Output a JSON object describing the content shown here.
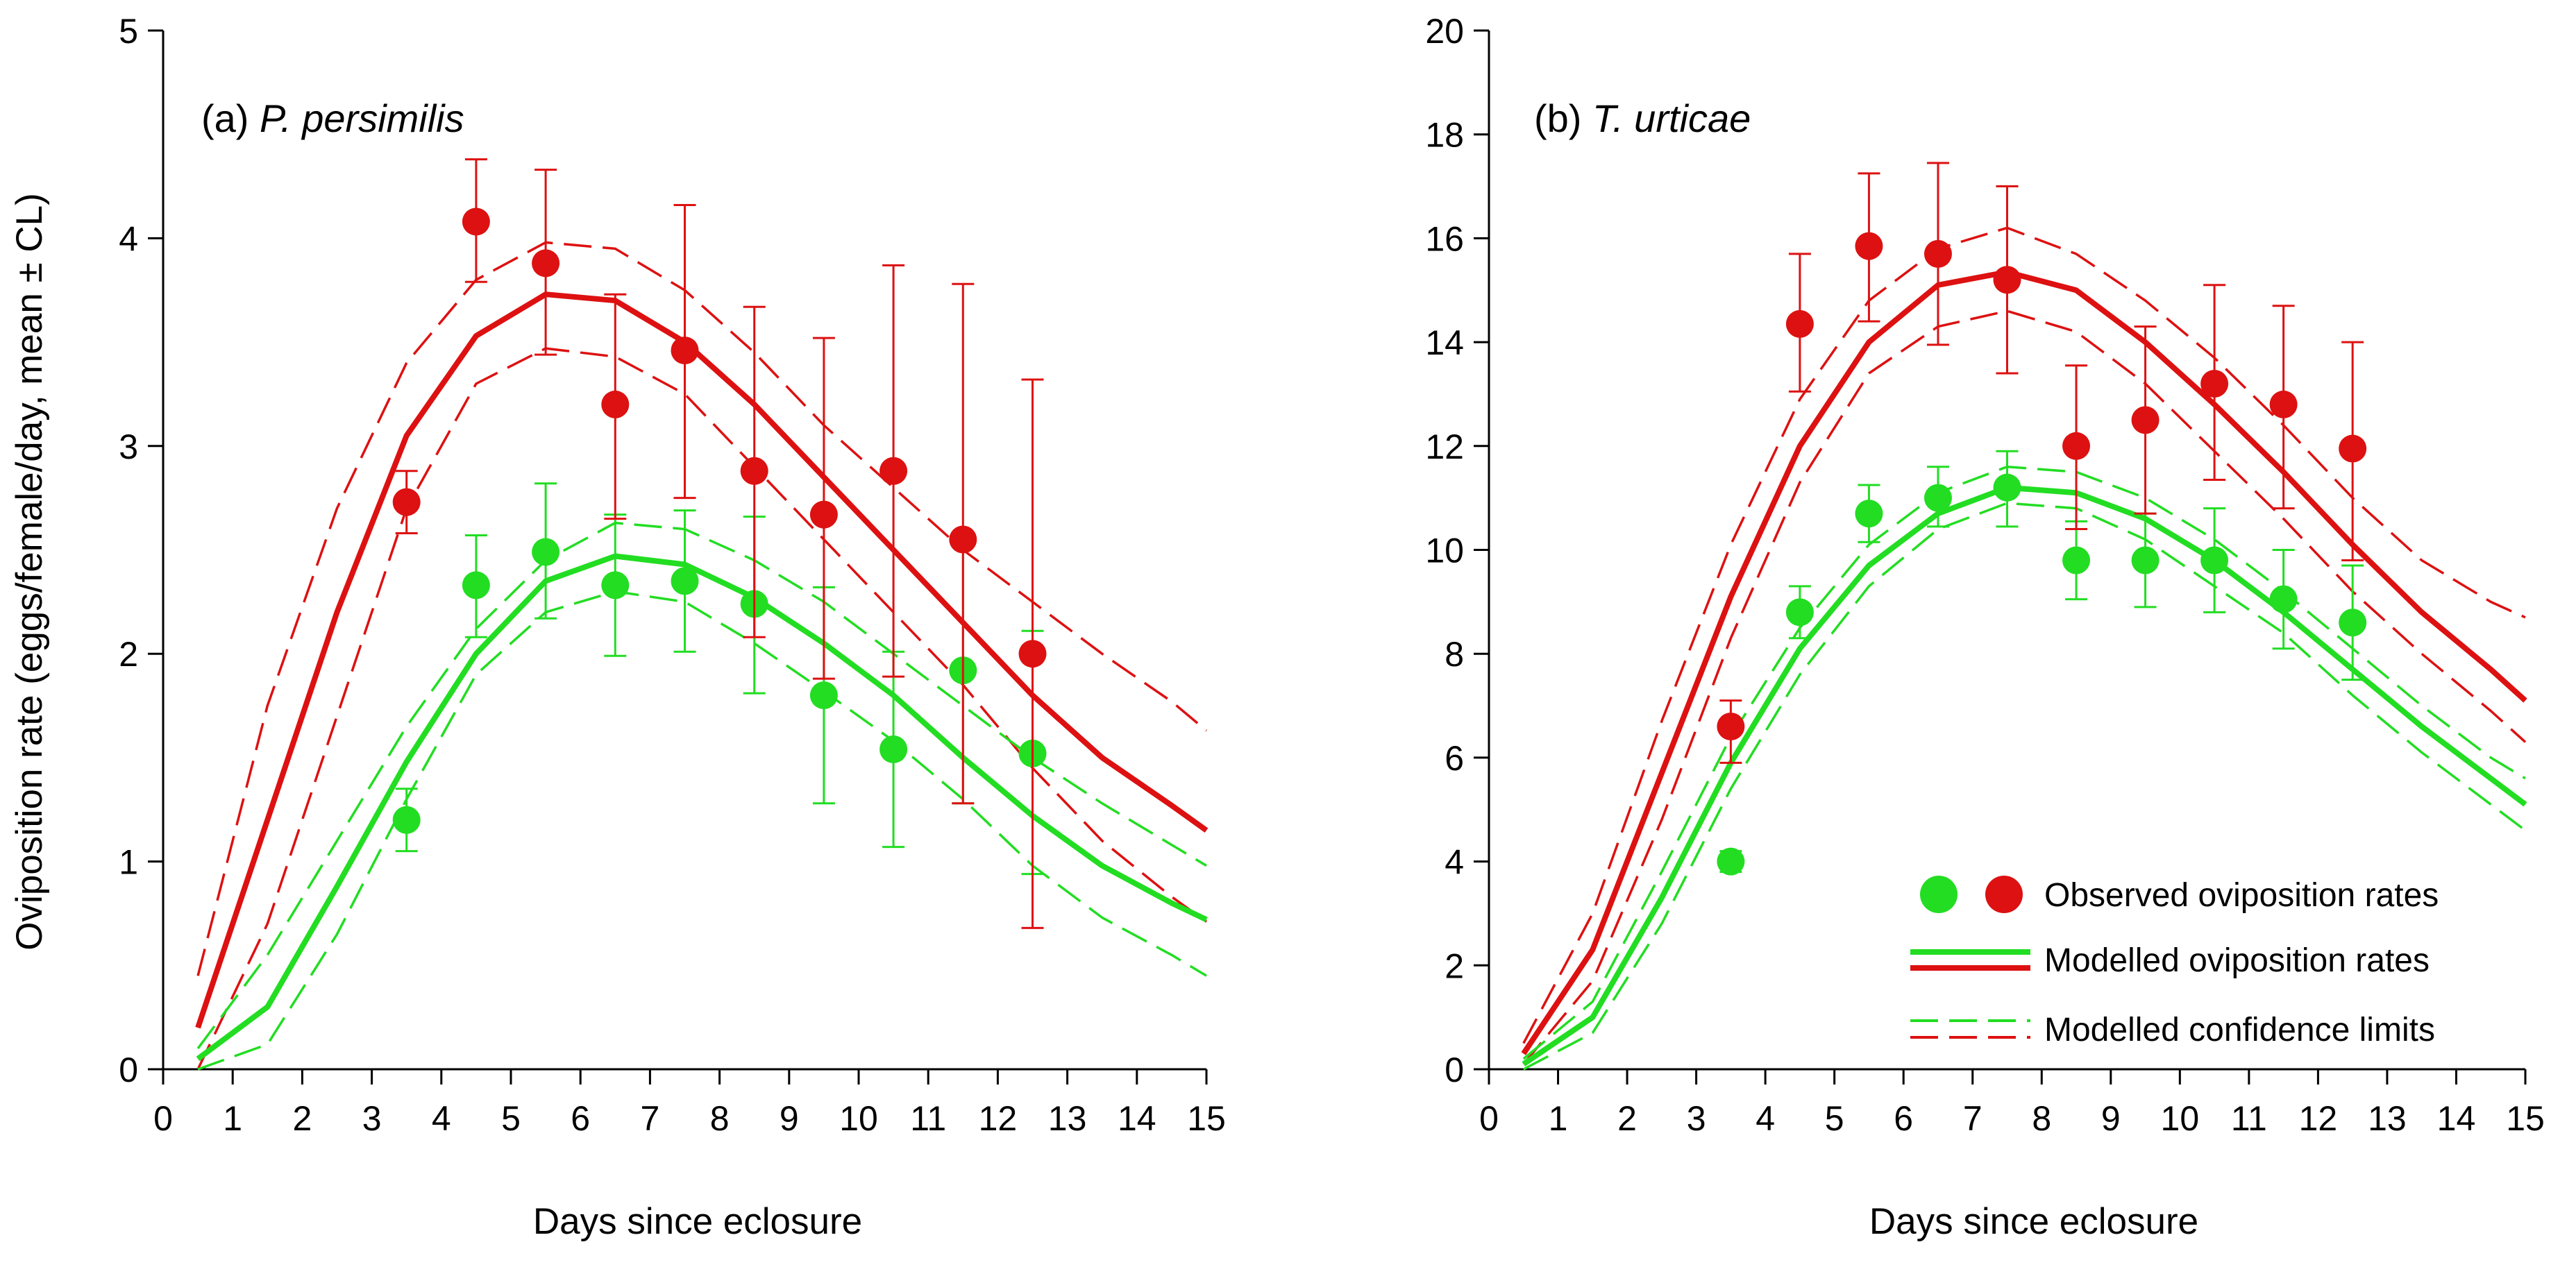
{
  "chart_data": [
    {
      "type": "line",
      "panel_label": "(a) ",
      "panel_species": "P. persimilis",
      "xlabel": "Days since eclosure",
      "ylabel": "Oviposition rate (eggs/female/day, mean ± CL)",
      "xlim": [
        0,
        15
      ],
      "ylim": [
        0,
        5
      ],
      "x_ticks": [
        0,
        1,
        2,
        3,
        4,
        5,
        6,
        7,
        8,
        9,
        10,
        11,
        12,
        13,
        14,
        15
      ],
      "y_ticks": [
        0,
        1,
        2,
        3,
        4,
        5
      ],
      "colors": {
        "red": "#dd1111",
        "green": "#22dd22"
      },
      "series": [
        {
          "name": "Modelled oviposition rates (red)",
          "kind": "model",
          "color": "red",
          "x": [
            0.5,
            1.5,
            2.5,
            3.5,
            4.5,
            5.5,
            6.5,
            7.5,
            8.5,
            9.5,
            10.5,
            11.5,
            12.5,
            13.5,
            14.5,
            15
          ],
          "y": [
            0.2,
            1.2,
            2.2,
            3.05,
            3.53,
            3.73,
            3.7,
            3.5,
            3.2,
            2.85,
            2.5,
            2.15,
            1.8,
            1.5,
            1.27,
            1.15
          ]
        },
        {
          "name": "Modelled confidence limits (red, upper)",
          "kind": "ci",
          "color": "red",
          "x": [
            0.5,
            1.5,
            2.5,
            3.5,
            4.5,
            5.5,
            6.5,
            7.5,
            8.5,
            9.5,
            10.5,
            11.5,
            12.5,
            13.5,
            14.5,
            15
          ],
          "y": [
            0.45,
            1.75,
            2.7,
            3.4,
            3.8,
            3.98,
            3.95,
            3.75,
            3.45,
            3.1,
            2.8,
            2.5,
            2.25,
            2.0,
            1.77,
            1.63
          ]
        },
        {
          "name": "Modelled confidence limits (red, lower)",
          "kind": "ci",
          "color": "red",
          "x": [
            0.5,
            1.5,
            2.5,
            3.5,
            4.5,
            5.5,
            6.5,
            7.5,
            8.5,
            9.5,
            10.5,
            11.5,
            12.5,
            13.5,
            14.5,
            15
          ],
          "y": [
            0.0,
            0.7,
            1.7,
            2.7,
            3.3,
            3.47,
            3.43,
            3.25,
            2.9,
            2.55,
            2.2,
            1.85,
            1.45,
            1.1,
            0.83,
            0.71
          ]
        },
        {
          "name": "Modelled oviposition rates (green)",
          "kind": "model",
          "color": "green",
          "x": [
            0.5,
            1.5,
            2.5,
            3.5,
            4.5,
            5.5,
            6.5,
            7.5,
            8.5,
            9.5,
            10.5,
            11.5,
            12.5,
            13.5,
            14.5,
            15
          ],
          "y": [
            0.05,
            0.3,
            0.88,
            1.48,
            2.0,
            2.35,
            2.47,
            2.43,
            2.27,
            2.05,
            1.8,
            1.5,
            1.22,
            0.98,
            0.8,
            0.72
          ]
        },
        {
          "name": "Modelled confidence limits (green, upper)",
          "kind": "ci",
          "color": "green",
          "x": [
            0.5,
            1.5,
            2.5,
            3.5,
            4.5,
            5.5,
            6.5,
            7.5,
            8.5,
            9.5,
            10.5,
            11.5,
            12.5,
            13.5,
            14.5,
            15
          ],
          "y": [
            0.1,
            0.55,
            1.1,
            1.65,
            2.12,
            2.45,
            2.63,
            2.6,
            2.45,
            2.25,
            2.0,
            1.75,
            1.5,
            1.28,
            1.08,
            0.98
          ]
        },
        {
          "name": "Modelled confidence limits (green, lower)",
          "kind": "ci",
          "color": "green",
          "x": [
            0.5,
            1.5,
            2.5,
            3.5,
            4.5,
            5.5,
            6.5,
            7.5,
            8.5,
            9.5,
            10.5,
            11.5,
            12.5,
            13.5,
            14.5,
            15
          ],
          "y": [
            0.0,
            0.12,
            0.65,
            1.3,
            1.9,
            2.2,
            2.3,
            2.25,
            2.05,
            1.82,
            1.58,
            1.3,
            0.98,
            0.73,
            0.55,
            0.45
          ]
        }
      ],
      "observed": [
        {
          "color": "red",
          "x": [
            3.5,
            4.5,
            5.5,
            6.5,
            7.5,
            8.5,
            9.5,
            10.5,
            11.5,
            12.5
          ],
          "y": [
            2.73,
            4.08,
            3.88,
            3.2,
            3.46,
            2.88,
            2.67,
            2.88,
            2.55,
            2.0
          ],
          "err_low": [
            2.58,
            3.79,
            3.44,
            2.65,
            2.75,
            2.08,
            1.88,
            1.89,
            1.28,
            0.68
          ],
          "err_high": [
            2.88,
            4.38,
            4.33,
            3.73,
            4.16,
            3.67,
            3.52,
            3.87,
            3.78,
            3.32
          ]
        },
        {
          "color": "green",
          "x": [
            3.5,
            4.5,
            5.5,
            6.5,
            7.5,
            8.5,
            9.5,
            10.5,
            11.5,
            12.5
          ],
          "y": [
            1.2,
            2.33,
            2.49,
            2.33,
            2.35,
            2.24,
            1.8,
            1.54,
            1.92,
            1.52
          ],
          "err_low": [
            1.05,
            2.08,
            2.17,
            1.99,
            2.01,
            1.81,
            1.28,
            1.07,
            1.28,
            0.94
          ],
          "err_high": [
            1.35,
            2.57,
            2.82,
            2.67,
            2.69,
            2.66,
            2.32,
            2.01,
            2.56,
            2.11
          ]
        }
      ]
    },
    {
      "type": "line",
      "panel_label": "(b) ",
      "panel_species": "T. urticae",
      "xlabel": "Days since eclosure",
      "ylabel": "",
      "xlim": [
        0,
        15
      ],
      "ylim": [
        0,
        20
      ],
      "x_ticks": [
        0,
        1,
        2,
        3,
        4,
        5,
        6,
        7,
        8,
        9,
        10,
        11,
        12,
        13,
        14,
        15
      ],
      "y_ticks": [
        0,
        2,
        4,
        6,
        8,
        10,
        12,
        14,
        16,
        18,
        20
      ],
      "series": [
        {
          "name": "Modelled oviposition rates (red)",
          "kind": "model",
          "color": "red",
          "x": [
            0.5,
            1.5,
            2.5,
            3.5,
            4.5,
            5.5,
            6.5,
            7.5,
            8.5,
            9.5,
            10.5,
            11.5,
            12.5,
            13.5,
            14.5,
            15
          ],
          "y": [
            0.3,
            2.3,
            5.7,
            9.1,
            12.0,
            14.0,
            15.1,
            15.35,
            15.0,
            14.0,
            12.8,
            11.5,
            10.1,
            8.8,
            7.7,
            7.1
          ]
        },
        {
          "name": "Modelled confidence limits (red, upper)",
          "kind": "ci",
          "color": "red",
          "x": [
            0.5,
            1.5,
            2.5,
            3.5,
            4.5,
            5.5,
            6.5,
            7.5,
            8.5,
            9.5,
            10.5,
            11.5,
            12.5,
            13.5,
            14.5,
            15
          ],
          "y": [
            0.5,
            3.0,
            6.7,
            10.1,
            12.9,
            14.8,
            15.8,
            16.2,
            15.7,
            14.8,
            13.7,
            12.4,
            11.0,
            9.8,
            9.0,
            8.7
          ]
        },
        {
          "name": "Modelled confidence limits (red, lower)",
          "kind": "ci",
          "color": "red",
          "x": [
            0.5,
            1.5,
            2.5,
            3.5,
            4.5,
            5.5,
            6.5,
            7.5,
            8.5,
            9.5,
            10.5,
            11.5,
            12.5,
            13.5,
            14.5,
            15
          ],
          "y": [
            0.1,
            1.7,
            4.8,
            8.3,
            11.3,
            13.4,
            14.3,
            14.6,
            14.2,
            13.2,
            11.9,
            10.6,
            9.2,
            8.0,
            6.9,
            6.3
          ]
        },
        {
          "name": "Modelled oviposition rates (green)",
          "kind": "model",
          "color": "green",
          "x": [
            0.5,
            1.5,
            2.5,
            3.5,
            4.5,
            5.5,
            6.5,
            7.5,
            8.5,
            9.5,
            10.5,
            11.5,
            12.5,
            13.5,
            14.5,
            15
          ],
          "y": [
            0.1,
            1.0,
            3.3,
            5.9,
            8.1,
            9.7,
            10.7,
            11.2,
            11.1,
            10.6,
            9.8,
            8.8,
            7.7,
            6.6,
            5.6,
            5.1
          ]
        },
        {
          "name": "Modelled confidence limits (green, upper)",
          "kind": "ci",
          "color": "green",
          "x": [
            0.5,
            1.5,
            2.5,
            3.5,
            4.5,
            5.5,
            6.5,
            7.5,
            8.5,
            9.5,
            10.5,
            11.5,
            12.5,
            13.5,
            14.5,
            15
          ],
          "y": [
            0.2,
            1.3,
            3.8,
            6.4,
            8.5,
            10.1,
            11.1,
            11.6,
            11.5,
            11.0,
            10.2,
            9.2,
            8.1,
            7.0,
            6.0,
            5.6
          ]
        },
        {
          "name": "Modelled confidence limits (green, lower)",
          "kind": "ci",
          "color": "green",
          "x": [
            0.5,
            1.5,
            2.5,
            3.5,
            4.5,
            5.5,
            6.5,
            7.5,
            8.5,
            9.5,
            10.5,
            11.5,
            12.5,
            13.5,
            14.5,
            15
          ],
          "y": [
            0.0,
            0.7,
            2.8,
            5.4,
            7.6,
            9.3,
            10.4,
            10.9,
            10.8,
            10.2,
            9.3,
            8.4,
            7.2,
            6.1,
            5.1,
            4.6
          ]
        }
      ],
      "observed": [
        {
          "color": "red",
          "x": [
            3.5,
            4.5,
            5.5,
            6.5,
            7.5,
            8.5,
            9.5,
            10.5,
            11.5,
            12.5
          ],
          "y": [
            6.6,
            14.35,
            15.85,
            15.7,
            15.2,
            12.0,
            12.5,
            13.2,
            12.8,
            11.95
          ],
          "err_low": [
            5.9,
            13.05,
            14.4,
            13.95,
            13.4,
            10.4,
            10.7,
            11.35,
            10.8,
            9.8
          ],
          "err_high": [
            7.1,
            15.7,
            17.25,
            17.45,
            17.0,
            13.55,
            14.3,
            15.1,
            14.7,
            14.0
          ]
        },
        {
          "color": "green",
          "x": [
            3.5,
            4.5,
            5.5,
            6.5,
            7.5,
            8.5,
            9.5,
            10.5,
            11.5,
            12.5
          ],
          "y": [
            4.0,
            8.8,
            10.7,
            11.0,
            11.2,
            9.8,
            9.8,
            9.8,
            9.05,
            8.6
          ],
          "err_low": [
            3.8,
            8.3,
            10.15,
            10.45,
            10.45,
            9.05,
            8.9,
            8.8,
            8.1,
            7.5
          ],
          "err_high": [
            4.2,
            9.3,
            11.25,
            11.6,
            11.9,
            10.55,
            10.7,
            10.8,
            10.0,
            9.7
          ]
        }
      ]
    }
  ],
  "legend": {
    "location": "lower-right of panel (b)",
    "items": [
      {
        "label": "Observed oviposition rates",
        "kind": "markers"
      },
      {
        "label": "Modelled oviposition rates",
        "kind": "solid"
      },
      {
        "label": "Modelled confidence limits",
        "kind": "dashed"
      }
    ]
  }
}
